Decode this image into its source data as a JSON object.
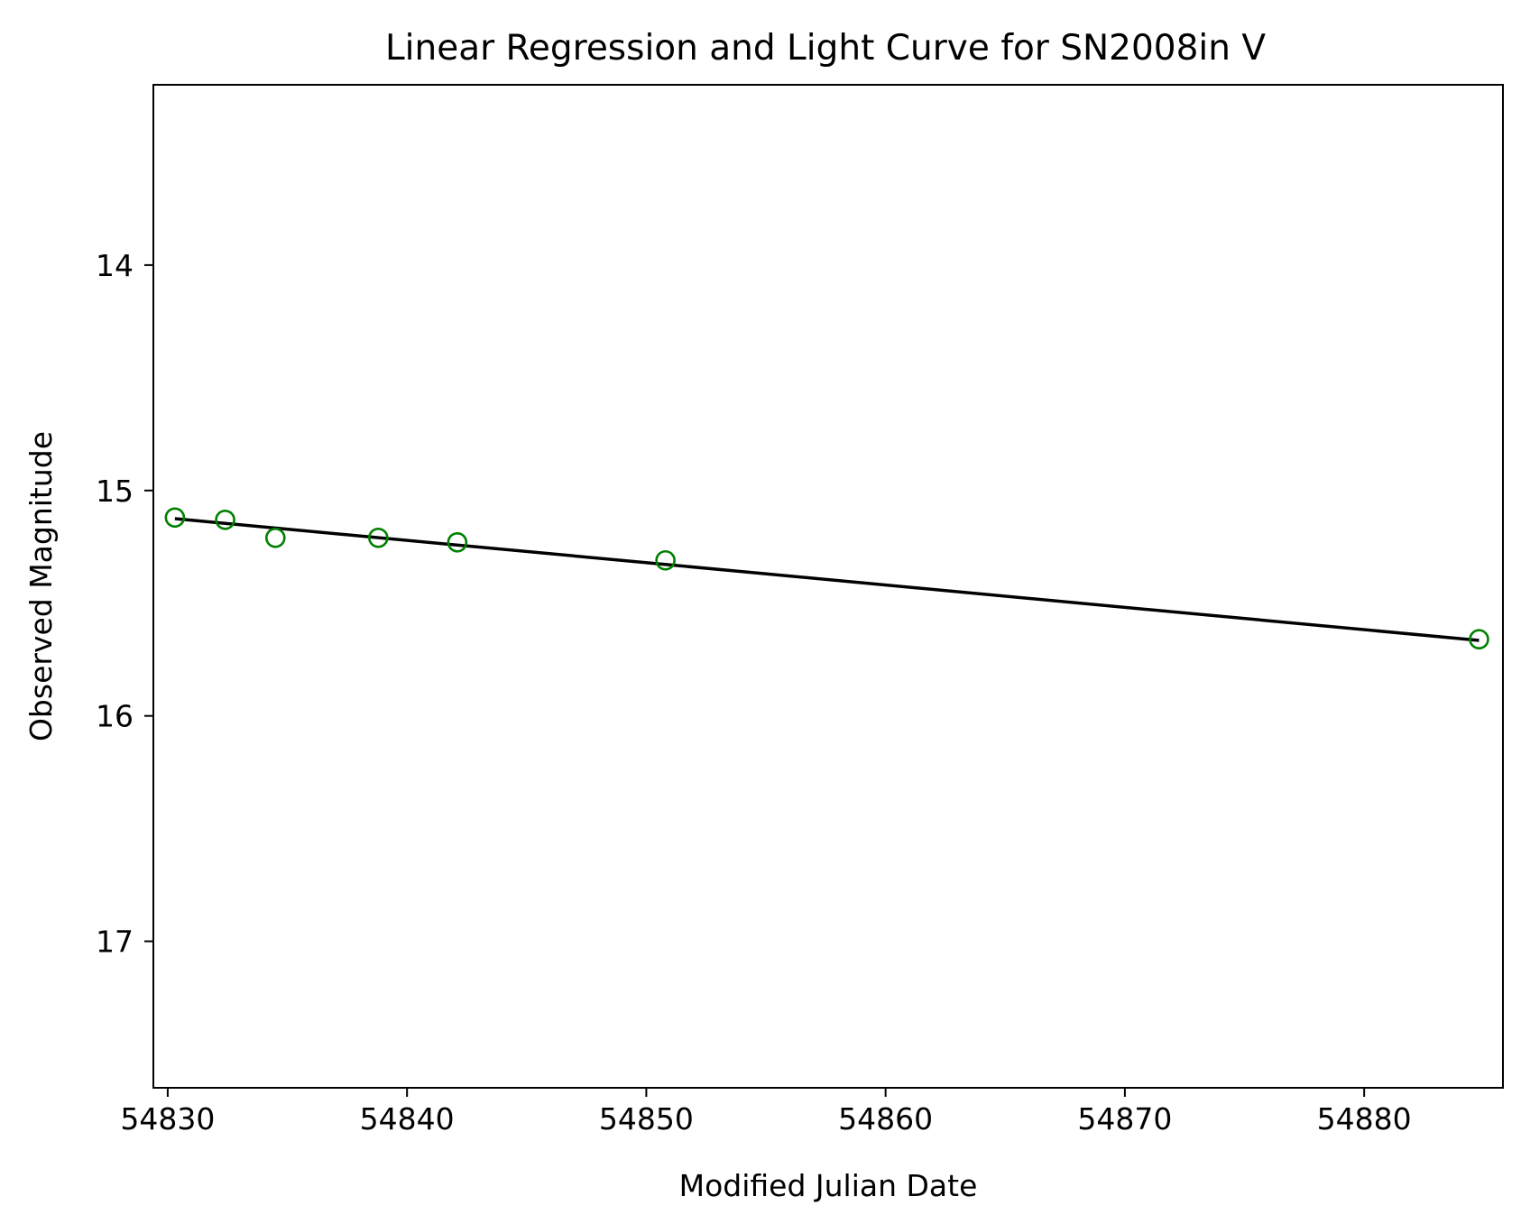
{
  "chart_data": {
    "type": "scatter",
    "title": "Linear Regression and Light Curve for SN2008in V",
    "xlabel": "Modified Julian Date",
    "ylabel": "Observed Magnitude",
    "xlim": [
      54829.4,
      54885.8
    ],
    "ylim": [
      17.65,
      13.2
    ],
    "y_inverted": true,
    "grid": false,
    "xticks": [
      54830,
      54840,
      54850,
      54860,
      54870,
      54880
    ],
    "xtick_labels": [
      "54830",
      "54840",
      "54850",
      "54860",
      "54870",
      "54880"
    ],
    "yticks": [
      14,
      15,
      16,
      17
    ],
    "ytick_labels": [
      "14",
      "15",
      "16",
      "17"
    ],
    "series": [
      {
        "name": "observations",
        "kind": "scatter",
        "marker": "open-circle",
        "color": "#008000",
        "x": [
          54830.3,
          54832.4,
          54834.5,
          54838.8,
          54842.1,
          54850.8,
          54884.8
        ],
        "y": [
          15.12,
          15.13,
          15.21,
          15.21,
          15.23,
          15.31,
          15.66
        ]
      },
      {
        "name": "linear regression",
        "kind": "line",
        "color": "#000000",
        "x": [
          54830.3,
          54884.8
        ],
        "y": [
          15.125,
          15.665
        ]
      }
    ]
  }
}
